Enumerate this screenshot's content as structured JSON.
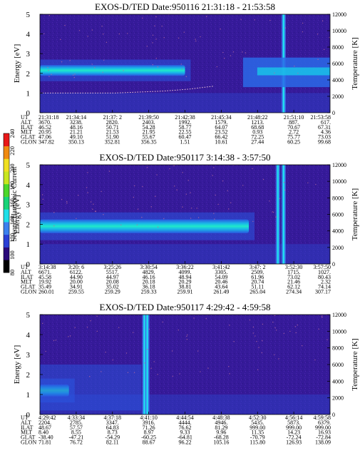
{
  "colorbar": {
    "label": "Second Harmonic Current",
    "ticks": [
      "80",
      "100",
      "120",
      "140",
      "160",
      "180",
      "200",
      "220",
      "240"
    ],
    "colors": [
      "#000000",
      "#2a0a7a",
      "#2a3fd6",
      "#3b80ee",
      "#1fe0e8",
      "#18d478",
      "#4cd82a",
      "#c8e61e",
      "#f0e020",
      "#f08a10",
      "#e81818"
    ]
  },
  "chart_data": [
    {
      "type": "heatmap",
      "title": "EXOS-D/TED   Date:950116  21:31:18 - 21:53:58",
      "ylabel": "Energy [eV]",
      "y2label": "Temperature [K]",
      "ylim": [
        0,
        5
      ],
      "y2lim": [
        0,
        12000
      ],
      "yticks": [
        "0",
        "1",
        "2",
        "3",
        "4",
        "5"
      ],
      "y2ticks": [
        "0",
        "2000",
        "4000",
        "6000",
        "8000",
        "10000",
        "12000"
      ],
      "band": {
        "center_ev": 2.15,
        "width_ev": 0.55,
        "end_fraction": 0.5
      },
      "spike_fractions": [
        0.84
      ],
      "temperature_line": [
        1.0,
        1.0,
        1.0,
        1.0,
        1.05,
        1.1,
        1.2,
        1.35
      ],
      "table": {
        "labels": [
          "UT",
          "ALT",
          "ILAT",
          "MLT",
          "GLAT",
          "GLON"
        ],
        "columns": [
          [
            "21:31:18",
            "3670.",
            "46.52",
            "20.95",
            "47.06",
            "347.82"
          ],
          [
            "21:34:14",
            "3238.",
            "48.16",
            "21.21",
            "49.10",
            "350.13"
          ],
          [
            "21:37: 2",
            "2820.",
            "50.71",
            "21.53",
            "51.90",
            "352.81"
          ],
          [
            "21:39:50",
            "2403.",
            "54.28",
            "21.95",
            "55.67",
            "356.35"
          ],
          [
            "21:42:38",
            "1992.",
            "58.77",
            "22.55",
            "60.47",
            "1.51"
          ],
          [
            "21:45:34",
            "1579.",
            "64.07",
            "23.52",
            "66.42",
            "10.61"
          ],
          [
            "21:48:22",
            "1213.",
            "68.68",
            "0.93",
            "72.25",
            "27.44"
          ],
          [
            "21:51:10",
            "887.",
            "70.67",
            "2.72",
            "75.77",
            "60.25"
          ],
          [
            "21:53:58",
            "617.",
            "67.31",
            "4.36",
            "73.03",
            "99.68"
          ]
        ]
      }
    },
    {
      "type": "heatmap",
      "title": "EXOS-D/TED   Date:950117  3:14:38 - 3:57:50",
      "ylabel": "Energy [eV]",
      "y2label": "Temperature [K]",
      "ylim": [
        0,
        5
      ],
      "y2lim": [
        0,
        12000
      ],
      "yticks": [
        "0",
        "1",
        "2",
        "3",
        "4",
        "5"
      ],
      "y2ticks": [
        "0",
        "2000",
        "4000",
        "6000",
        "8000",
        "10000",
        "12000"
      ],
      "band": {
        "center_ev": 1.9,
        "width_ev": 0.7,
        "end_fraction": 0.72
      },
      "spike_fractions": [
        0.82,
        0.84
      ],
      "temperature_line": [],
      "table": {
        "labels": [
          "UT",
          "ALT",
          "ILAT",
          "MLT",
          "GLAT",
          "GLON"
        ],
        "columns": [
          [
            "3:14:38",
            "6671.",
            "45.58",
            "19.92",
            "35.49",
            "260.01"
          ],
          [
            "3:20: 6",
            "6122.",
            "44.90",
            "20.00",
            "34.91",
            "259.55"
          ],
          [
            "3:25:26",
            "5517.",
            "44.97",
            "20.08",
            "35.02",
            "259.29"
          ],
          [
            "3:30:54",
            "4829.",
            "46.16",
            "20.18",
            "36.18",
            "259.33"
          ],
          [
            "3:36:22",
            "4099.",
            "48.94",
            "20.29",
            "38.81",
            "259.91"
          ],
          [
            "3:41:42",
            "3305.",
            "54.09",
            "20.46",
            "43.64",
            "261.49"
          ],
          [
            "3:47: 2",
            "2509.",
            "61.96",
            "20.74",
            "51.11",
            "265.04"
          ],
          [
            "3:52:30",
            "1715.",
            "73.02",
            "21.46",
            "62.12",
            "274.34"
          ],
          [
            "3:57:50",
            "1027.",
            "80.43",
            "2.32",
            "74.14",
            "307.17"
          ]
        ]
      }
    },
    {
      "type": "heatmap",
      "title": "EXOS-D/TED   Date:950117  4:29:42 - 4:59:58",
      "ylabel": "Energy [eV]",
      "y2label": "Temperature [K]",
      "ylim": [
        0,
        5
      ],
      "y2lim": [
        0,
        12000
      ],
      "yticks": [
        "0",
        "1",
        "2",
        "3",
        "4",
        "5"
      ],
      "y2ticks": [
        "0",
        "2000",
        "4000",
        "6000",
        "8000",
        "10000",
        "12000"
      ],
      "band": {
        "center_ev": 1.2,
        "width_ev": 0.6,
        "end_fraction": 0.1
      },
      "spike_fractions": [
        0.36,
        0.37
      ],
      "temperature_line": [],
      "table": {
        "labels": [
          "UT",
          "ALT",
          "ILAT",
          "MLT",
          "GLAT",
          "GLON"
        ],
        "columns": [
          [
            "4:29:42",
            "2204.",
            "48.67",
            "8.40",
            "-38.40",
            "71.81"
          ],
          [
            "4:33:34",
            "2785.",
            "57.57",
            "8.55",
            "-47.21",
            "76.72"
          ],
          [
            "4:37:18",
            "3347.",
            "64.83",
            "8.73",
            "-54.29",
            "82.11"
          ],
          [
            "4:41:10",
            "3916.",
            "71.26",
            "8.97",
            "-60.25",
            "88.67"
          ],
          [
            "4:44:54",
            "4444.",
            "76.62",
            "9.33",
            "-64.81",
            "96.22"
          ],
          [
            "4:48:38",
            "4946.",
            "81.29",
            "9.96",
            "-68.28",
            "105.16"
          ],
          [
            "4:52:30",
            "5435.",
            "999.00",
            "11.35",
            "-70.79",
            "115.80"
          ],
          [
            "4:56:14",
            "5873.",
            "999.00",
            "14.23",
            "-72.24",
            "126.93"
          ],
          [
            "4:59:58",
            "6379.",
            "999.00",
            "16.93",
            "-72.84",
            "138.09"
          ]
        ]
      }
    }
  ]
}
